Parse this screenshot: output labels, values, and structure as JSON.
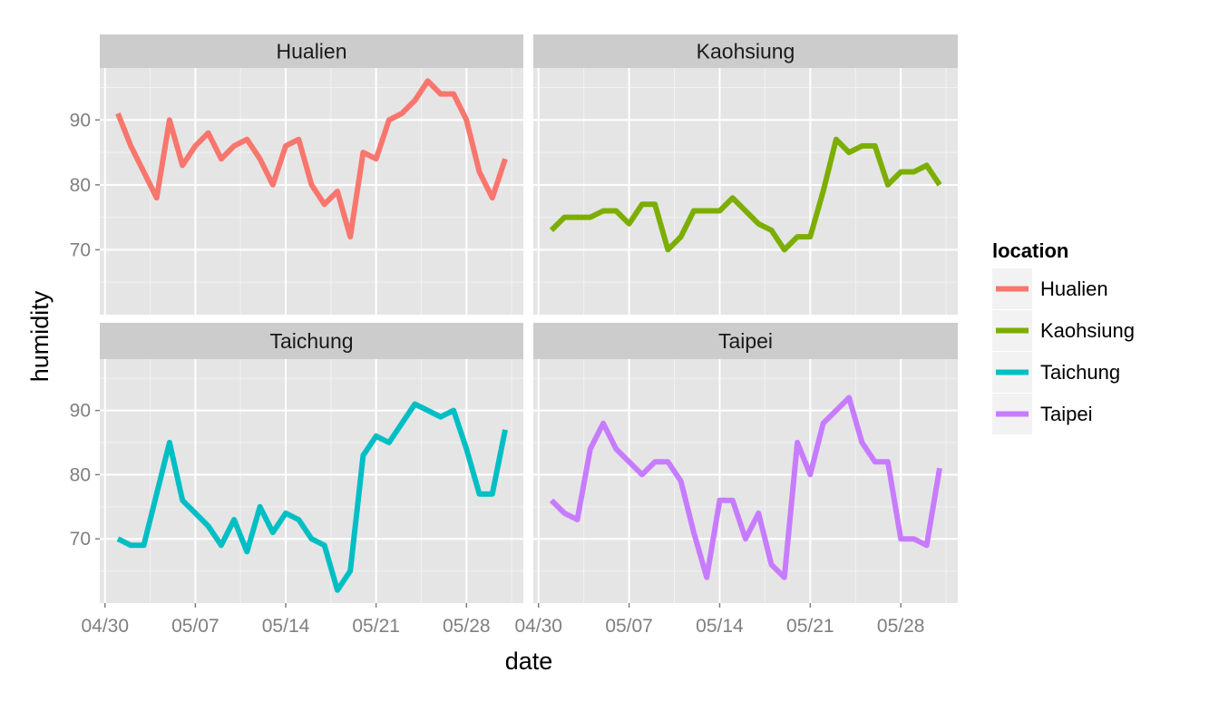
{
  "chart_data": {
    "type": "line",
    "facet_by": "location",
    "xlabel": "date",
    "ylabel": "humidity",
    "x_dates": [
      "05/01",
      "05/02",
      "05/03",
      "05/04",
      "05/05",
      "05/06",
      "05/07",
      "05/08",
      "05/09",
      "05/10",
      "05/11",
      "05/12",
      "05/13",
      "05/14",
      "05/15",
      "05/16",
      "05/17",
      "05/18",
      "05/19",
      "05/20",
      "05/21",
      "05/22",
      "05/23",
      "05/24",
      "05/25",
      "05/26",
      "05/27",
      "05/28",
      "05/29",
      "05/30",
      "05/31"
    ],
    "x_ticks": [
      "04/30",
      "05/07",
      "05/14",
      "05/21",
      "05/28"
    ],
    "y_ticks": [
      70,
      80,
      90
    ],
    "ylim": [
      60,
      98
    ],
    "legend": {
      "title": "location",
      "position": "right"
    },
    "series": [
      {
        "name": "Hualien",
        "color": "#F8766D",
        "values": [
          91,
          86,
          82,
          78,
          90,
          83,
          86,
          88,
          84,
          86,
          87,
          84,
          80,
          86,
          87,
          80,
          77,
          79,
          72,
          85,
          84,
          90,
          91,
          93,
          96,
          94,
          94,
          90,
          82,
          78,
          84
        ]
      },
      {
        "name": "Kaohsiung",
        "color": "#7CAE00",
        "values": [
          73,
          75,
          75,
          75,
          76,
          76,
          74,
          77,
          77,
          70,
          72,
          76,
          76,
          76,
          78,
          76,
          74,
          73,
          70,
          72,
          72,
          79,
          87,
          85,
          86,
          86,
          80,
          82,
          82,
          83,
          80
        ]
      },
      {
        "name": "Taichung",
        "color": "#00BFC4",
        "values": [
          70,
          69,
          69,
          77,
          85,
          76,
          74,
          72,
          69,
          73,
          68,
          75,
          71,
          74,
          73,
          70,
          69,
          62,
          65,
          83,
          86,
          85,
          88,
          91,
          90,
          89,
          90,
          84,
          77,
          77,
          87
        ]
      },
      {
        "name": "Taipei",
        "color": "#C77CFF",
        "values": [
          76,
          74,
          73,
          84,
          88,
          84,
          82,
          80,
          82,
          82,
          79,
          71,
          64,
          76,
          76,
          70,
          74,
          66,
          64,
          85,
          80,
          88,
          90,
          92,
          85,
          82,
          82,
          70,
          70,
          69,
          81
        ]
      }
    ]
  }
}
